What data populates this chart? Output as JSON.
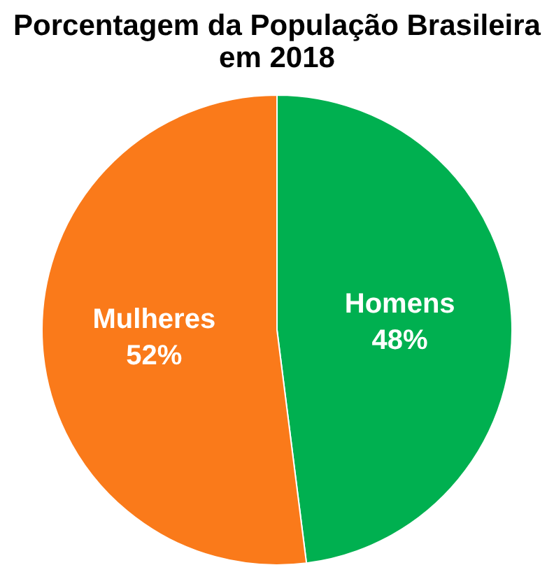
{
  "chart_data": {
    "type": "pie",
    "title": [
      "Porcentagem da População Brasileira",
      "em 2018"
    ],
    "categories": [
      "Homens",
      "Mulheres"
    ],
    "values": [
      48,
      52
    ],
    "colors": [
      "#00b050",
      "#fa7a1a"
    ],
    "value_labels": [
      "48%",
      "52%"
    ]
  }
}
